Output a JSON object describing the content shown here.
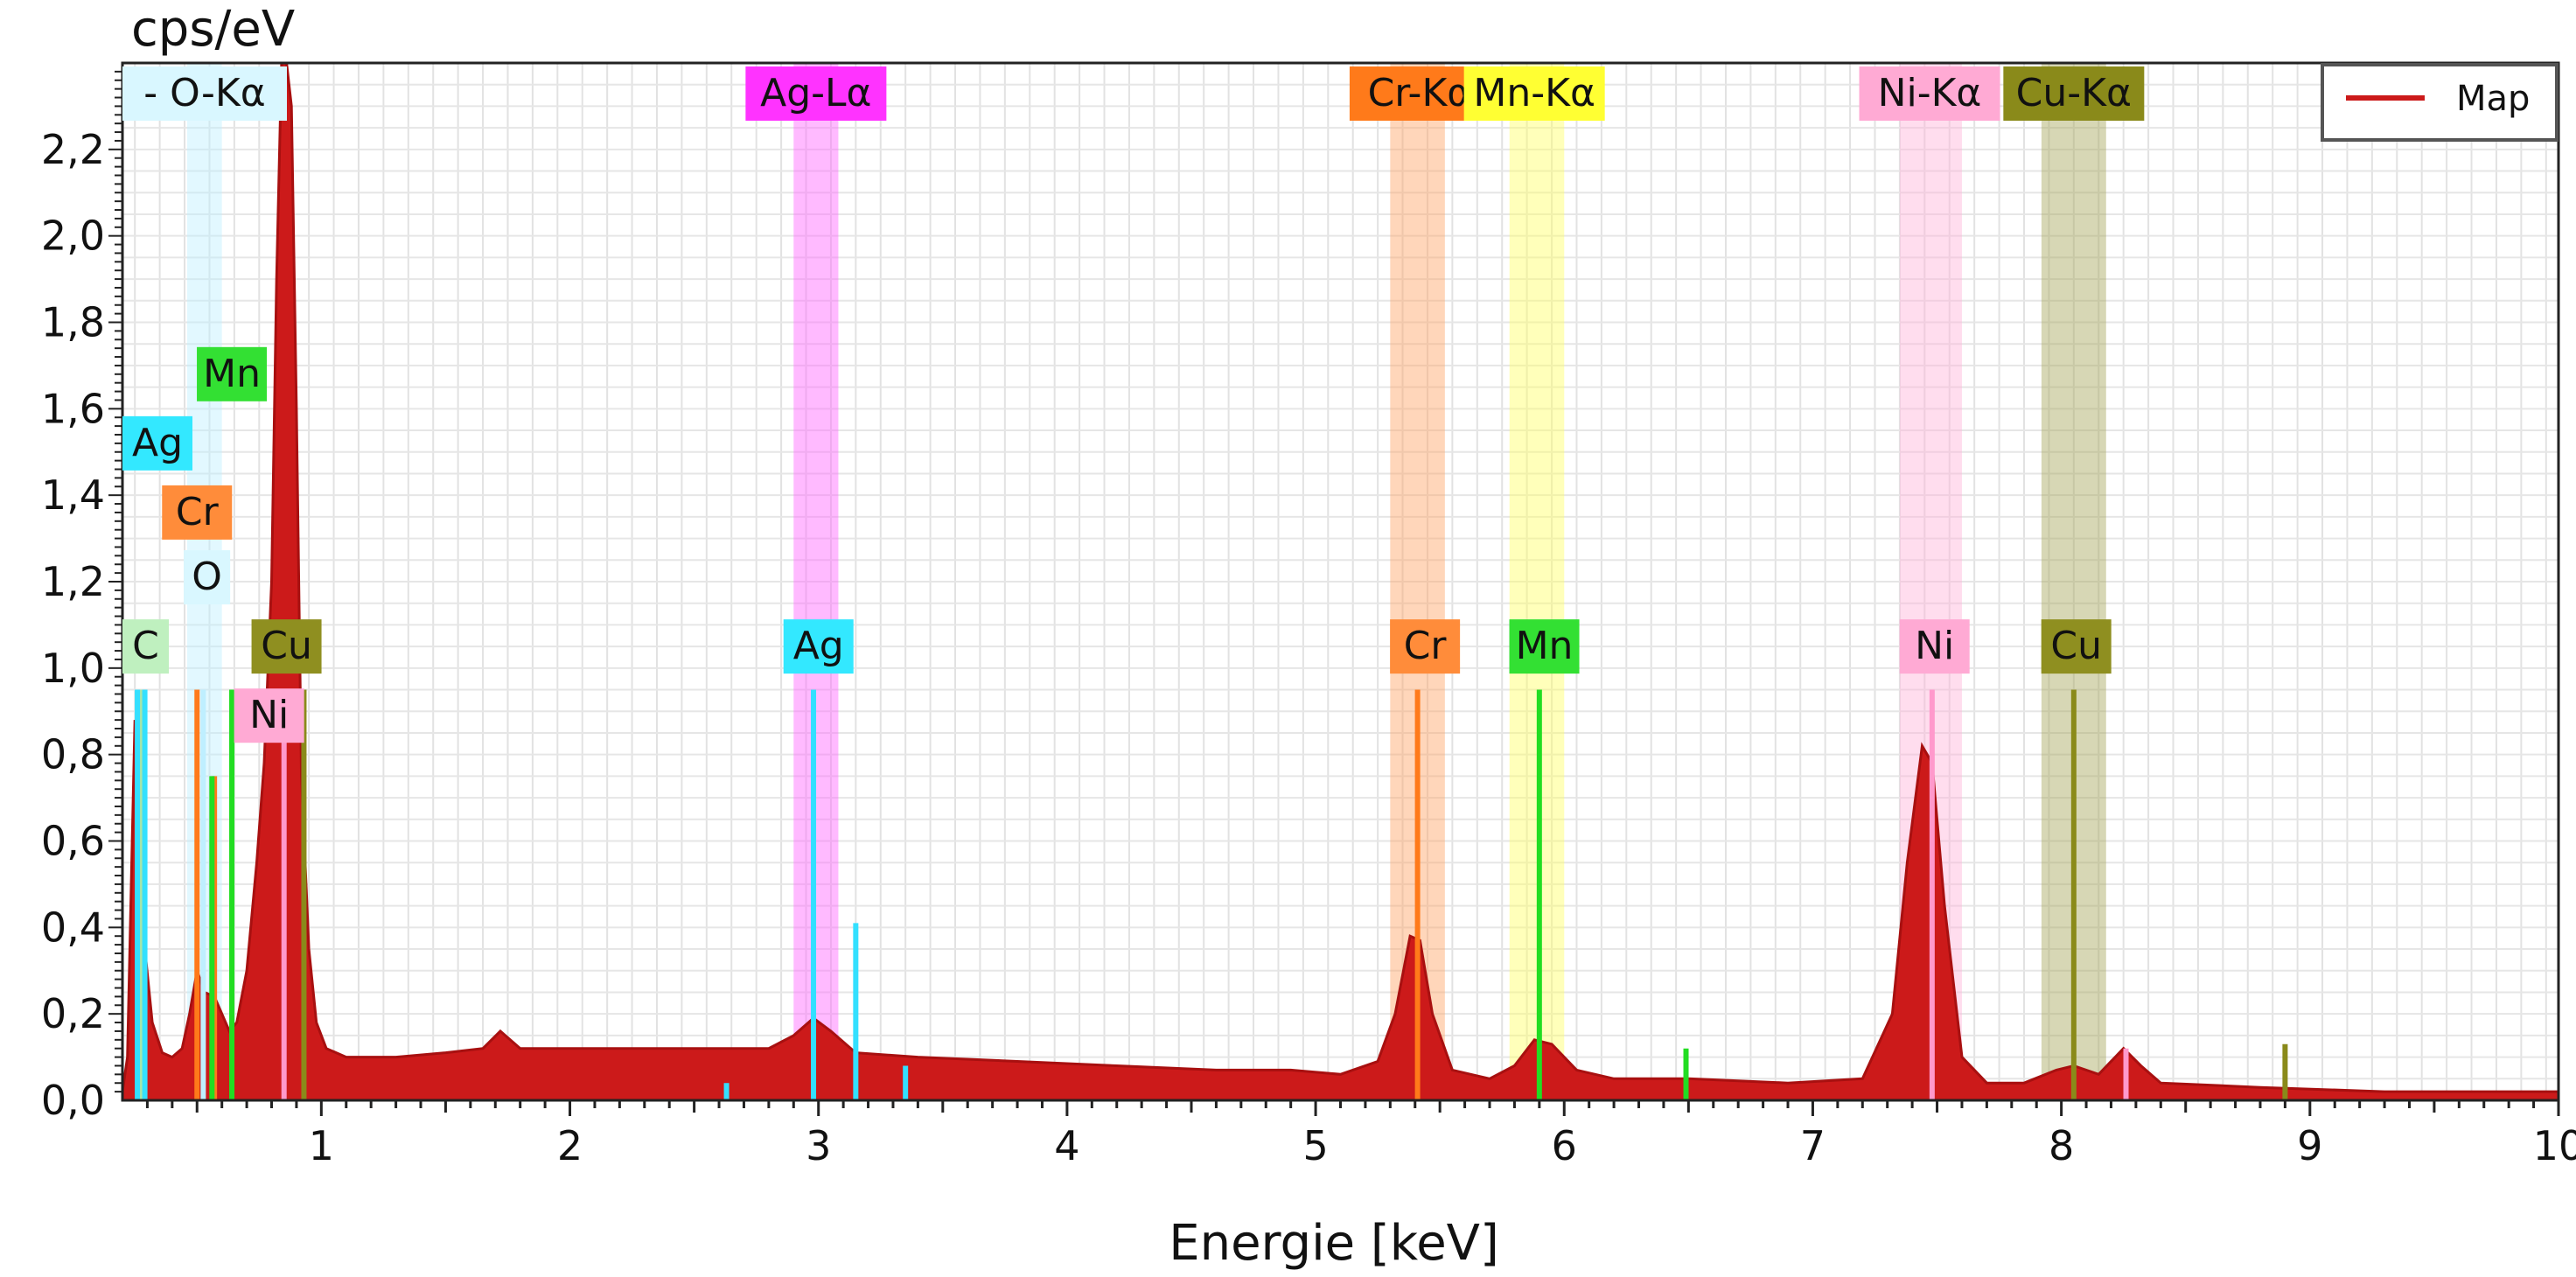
{
  "chart_data": {
    "type": "area",
    "title": "",
    "ylabel": "cps/eV",
    "xlabel": "Energie [keV]",
    "xlim": [
      0.2,
      10
    ],
    "ylim": [
      0,
      2.4
    ],
    "xticks": [
      1,
      2,
      3,
      4,
      5,
      6,
      7,
      8,
      9,
      10
    ],
    "yticks": [
      "0,0",
      "0,2",
      "0,4",
      "0,6",
      "0,8",
      "1,0",
      "1,2",
      "1,4",
      "1,6",
      "1,8",
      "2,0",
      "2,2"
    ],
    "ytick_values": [
      0,
      0.2,
      0.4,
      0.6,
      0.8,
      1.0,
      1.2,
      1.4,
      1.6,
      1.8,
      2.0,
      2.2
    ],
    "grid": true,
    "legend": {
      "position": "top-right",
      "entries": [
        {
          "name": "Map",
          "color": "#cc1a1a"
        }
      ]
    },
    "series": [
      {
        "name": "Map",
        "color": "#cc1a1a",
        "points": [
          [
            0.2,
            0.02
          ],
          [
            0.22,
            0.1
          ],
          [
            0.25,
            0.88
          ],
          [
            0.27,
            0.7
          ],
          [
            0.29,
            0.35
          ],
          [
            0.32,
            0.18
          ],
          [
            0.36,
            0.11
          ],
          [
            0.4,
            0.1
          ],
          [
            0.44,
            0.12
          ],
          [
            0.47,
            0.2
          ],
          [
            0.5,
            0.3
          ],
          [
            0.53,
            0.25
          ],
          [
            0.57,
            0.24
          ],
          [
            0.6,
            0.2
          ],
          [
            0.63,
            0.16
          ],
          [
            0.66,
            0.18
          ],
          [
            0.7,
            0.3
          ],
          [
            0.74,
            0.55
          ],
          [
            0.77,
            0.78
          ],
          [
            0.8,
            1.2
          ],
          [
            0.82,
            1.9
          ],
          [
            0.84,
            2.4
          ],
          [
            0.86,
            2.4
          ],
          [
            0.88,
            2.3
          ],
          [
            0.9,
            1.6
          ],
          [
            0.92,
            0.75
          ],
          [
            0.95,
            0.35
          ],
          [
            0.98,
            0.18
          ],
          [
            1.02,
            0.12
          ],
          [
            1.1,
            0.1
          ],
          [
            1.3,
            0.1
          ],
          [
            1.5,
            0.11
          ],
          [
            1.65,
            0.12
          ],
          [
            1.72,
            0.16
          ],
          [
            1.8,
            0.12
          ],
          [
            2.0,
            0.12
          ],
          [
            2.3,
            0.12
          ],
          [
            2.6,
            0.12
          ],
          [
            2.8,
            0.12
          ],
          [
            2.9,
            0.15
          ],
          [
            2.98,
            0.19
          ],
          [
            3.05,
            0.16
          ],
          [
            3.15,
            0.11
          ],
          [
            3.4,
            0.1
          ],
          [
            3.8,
            0.09
          ],
          [
            4.2,
            0.08
          ],
          [
            4.6,
            0.07
          ],
          [
            4.9,
            0.07
          ],
          [
            5.1,
            0.06
          ],
          [
            5.25,
            0.09
          ],
          [
            5.32,
            0.2
          ],
          [
            5.38,
            0.38
          ],
          [
            5.42,
            0.37
          ],
          [
            5.47,
            0.2
          ],
          [
            5.55,
            0.07
          ],
          [
            5.7,
            0.05
          ],
          [
            5.8,
            0.08
          ],
          [
            5.88,
            0.14
          ],
          [
            5.95,
            0.13
          ],
          [
            6.05,
            0.07
          ],
          [
            6.2,
            0.05
          ],
          [
            6.5,
            0.05
          ],
          [
            6.9,
            0.04
          ],
          [
            7.2,
            0.05
          ],
          [
            7.32,
            0.2
          ],
          [
            7.38,
            0.55
          ],
          [
            7.44,
            0.82
          ],
          [
            7.48,
            0.78
          ],
          [
            7.53,
            0.45
          ],
          [
            7.6,
            0.1
          ],
          [
            7.7,
            0.04
          ],
          [
            7.85,
            0.04
          ],
          [
            7.98,
            0.07
          ],
          [
            8.05,
            0.08
          ],
          [
            8.15,
            0.06
          ],
          [
            8.25,
            0.12
          ],
          [
            8.32,
            0.08
          ],
          [
            8.4,
            0.04
          ],
          [
            8.8,
            0.03
          ],
          [
            9.3,
            0.02
          ],
          [
            10.0,
            0.02
          ]
        ]
      }
    ],
    "element_lines": [
      {
        "element": "C",
        "color": "#a8e6a8",
        "x": 0.277,
        "y": 0.95
      },
      {
        "element": "O",
        "color": "#bfefff",
        "x": 0.525,
        "y": 0.95
      },
      {
        "element": "Ag",
        "color": "#33e0ff",
        "x": 0.26,
        "y": 0.95
      },
      {
        "element": "Ag",
        "color": "#33e0ff",
        "x": 0.29,
        "y": 0.95
      },
      {
        "element": "Ag",
        "color": "#33e0ff",
        "x": 2.98,
        "y": 0.95
      },
      {
        "element": "Ag",
        "color": "#33e0ff",
        "x": 3.15,
        "y": 0.41
      },
      {
        "element": "Ag",
        "color": "#33e0ff",
        "x": 3.35,
        "y": 0.08
      },
      {
        "element": "Ag",
        "color": "#33e0ff",
        "x": 2.63,
        "y": 0.04
      },
      {
        "element": "Cr",
        "color": "#ff7a1a",
        "x": 0.5,
        "y": 0.95
      },
      {
        "element": "Cr",
        "color": "#ff7a1a",
        "x": 0.57,
        "y": 0.75
      },
      {
        "element": "Cr",
        "color": "#ff7a1a",
        "x": 5.41,
        "y": 0.95
      },
      {
        "element": "Mn",
        "color": "#22dd22",
        "x": 0.56,
        "y": 0.75
      },
      {
        "element": "Mn",
        "color": "#22dd22",
        "x": 0.64,
        "y": 0.95
      },
      {
        "element": "Mn",
        "color": "#22dd22",
        "x": 5.9,
        "y": 0.95
      },
      {
        "element": "Mn",
        "color": "#22dd22",
        "x": 6.49,
        "y": 0.12
      },
      {
        "element": "Ni",
        "color": "#ff99cc",
        "x": 0.85,
        "y": 0.95
      },
      {
        "element": "Ni",
        "color": "#ff99cc",
        "x": 7.48,
        "y": 0.95
      },
      {
        "element": "Ni",
        "color": "#ff99cc",
        "x": 8.26,
        "y": 0.12
      },
      {
        "element": "Cu",
        "color": "#8a8a1a",
        "x": 0.93,
        "y": 0.95
      },
      {
        "element": "Cu",
        "color": "#8a8a1a",
        "x": 8.05,
        "y": 0.95
      },
      {
        "element": "Cu",
        "color": "#8a8a1a",
        "x": 8.9,
        "y": 0.13
      }
    ],
    "roi_bands": [
      {
        "label": "O-Kα",
        "color": "#bfefff",
        "x_start": 0.46,
        "x_end": 0.6
      },
      {
        "label": "Ag-Lα",
        "color": "#ff66ff",
        "x_start": 2.9,
        "x_end": 3.08
      },
      {
        "label": "Cr-Kα",
        "color": "#ffa366",
        "x_start": 5.3,
        "x_end": 5.52
      },
      {
        "label": "Mn-Kα",
        "color": "#ffff66",
        "x_start": 5.78,
        "x_end": 6.0
      },
      {
        "label": "Ni-Kα",
        "color": "#ffb3d9",
        "x_start": 7.35,
        "x_end": 7.6
      },
      {
        "label": "Cu-Kα",
        "color": "#a6a65c",
        "x_start": 7.92,
        "x_end": 8.18
      }
    ],
    "roi_labels": [
      {
        "text": "- O-Kα",
        "color": "#d9f7ff",
        "x": 0.45
      },
      {
        "text": "Ag-Lα",
        "color": "#ff33ff",
        "x": 2.99
      },
      {
        "text": "Cr-Kα",
        "color": "#ff7a1a",
        "x": 5.42
      },
      {
        "text": "Mn-Kα",
        "color": "#ffff33",
        "x": 5.88
      },
      {
        "text": "Ni-Kα",
        "color": "#ffaad4",
        "x": 7.47
      },
      {
        "text": "Cu-Kα",
        "color": "#8a8a1a",
        "x": 8.05
      }
    ],
    "element_labels": [
      {
        "text": "Mn",
        "color": "#33e033",
        "x": 0.64,
        "y": 1.68
      },
      {
        "text": "Ag",
        "color": "#33e8ff",
        "x": 0.33,
        "y": 1.52
      },
      {
        "text": "Cr",
        "color": "#ff8c3a",
        "x": 0.5,
        "y": 1.36
      },
      {
        "text": "O",
        "color": "#d9f7ff",
        "x": 0.54,
        "y": 1.21
      },
      {
        "text": "C",
        "color": "#bff0bf",
        "x": 0.28,
        "y": 1.05
      },
      {
        "text": "Cu",
        "color": "#8f8f20",
        "x": 0.86,
        "y": 1.05
      },
      {
        "text": "Ni",
        "color": "#ffaad4",
        "x": 0.79,
        "y": 0.89
      },
      {
        "text": "Ag",
        "color": "#33e8ff",
        "x": 3.0,
        "y": 1.05
      },
      {
        "text": "Cr",
        "color": "#ff8c3a",
        "x": 5.44,
        "y": 1.05
      },
      {
        "text": "Mn",
        "color": "#33e033",
        "x": 5.92,
        "y": 1.05
      },
      {
        "text": "Ni",
        "color": "#ffaad4",
        "x": 7.49,
        "y": 1.05
      },
      {
        "text": "Cu",
        "color": "#8f8f20",
        "x": 8.06,
        "y": 1.05
      }
    ]
  }
}
